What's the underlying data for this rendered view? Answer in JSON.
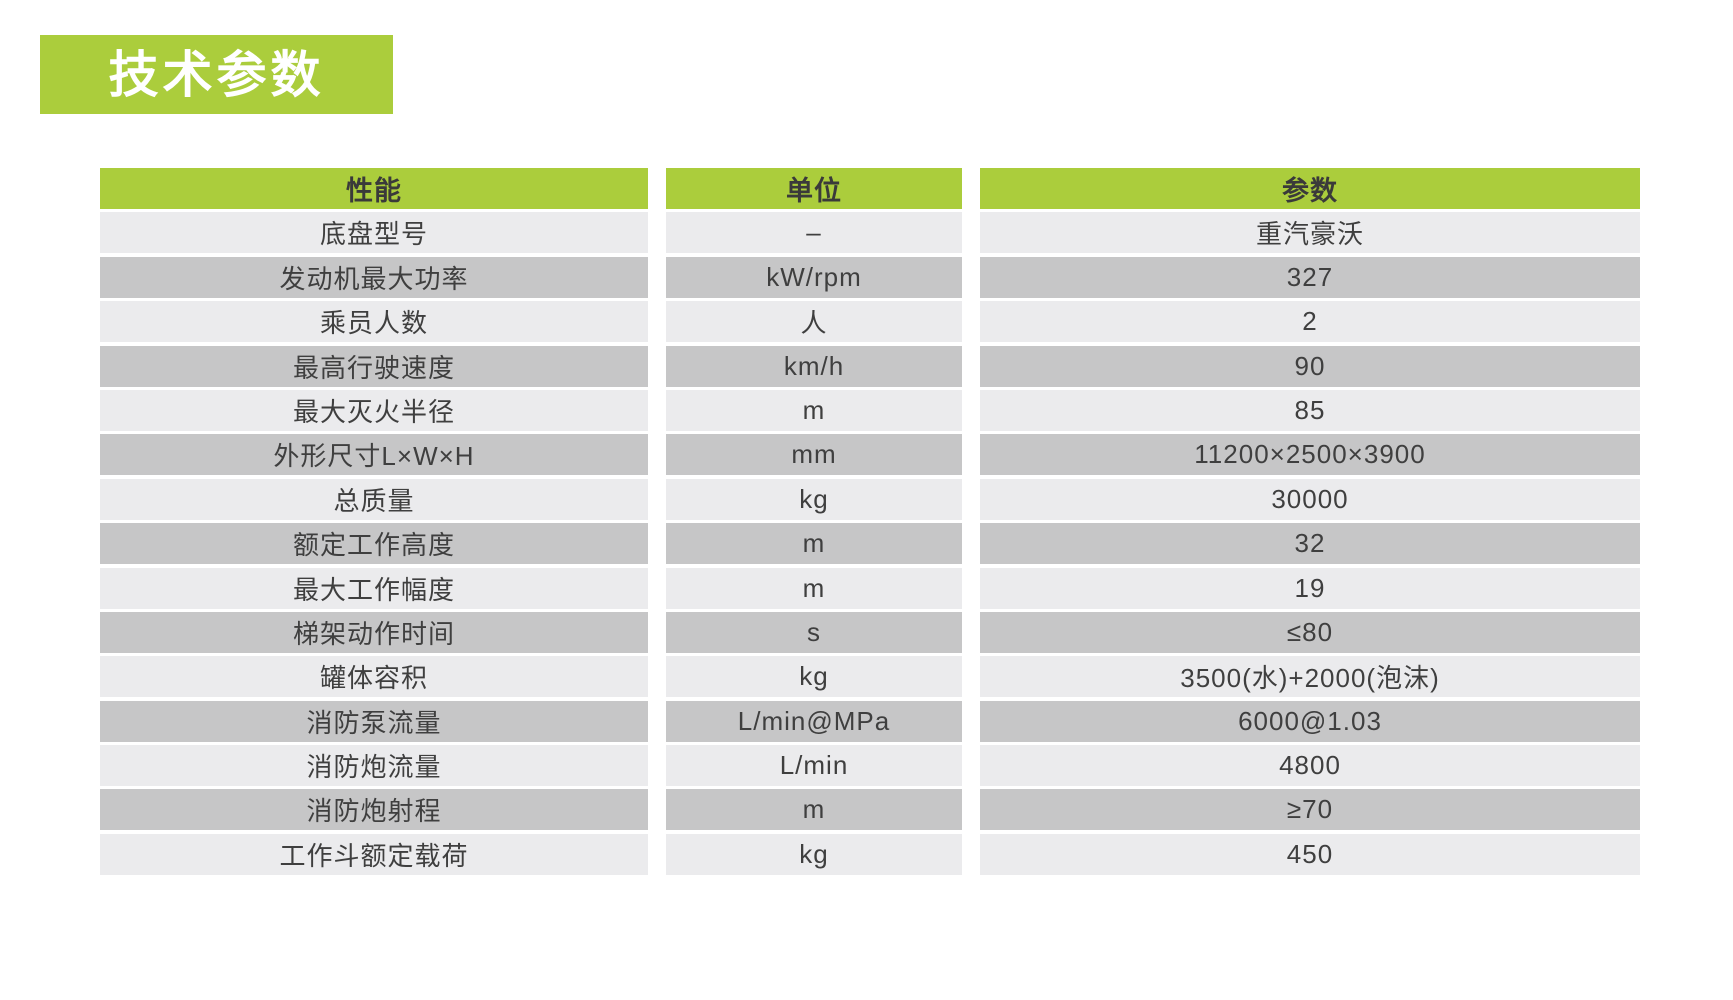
{
  "section": {
    "title": "技术参数"
  },
  "colors": {
    "accent_green": "#abcd3c",
    "row_light": "#ebebed",
    "row_dark": "#c6c6c7",
    "header_text": "#3a3a3a",
    "cell_text": "#3f3f3f",
    "title_text": "#ffffff"
  },
  "table": {
    "headers": [
      "性能",
      "单位",
      "参数"
    ],
    "rows": [
      {
        "name": "底盘型号",
        "unit": "–",
        "value": "重汽豪沃"
      },
      {
        "name": "发动机最大功率",
        "unit": "kW/rpm",
        "value": "327"
      },
      {
        "name": "乘员人数",
        "unit": "人",
        "value": "2"
      },
      {
        "name": "最高行驶速度",
        "unit": "km/h",
        "value": "90"
      },
      {
        "name": "最大灭火半径",
        "unit": "m",
        "value": "85"
      },
      {
        "name": "外形尺寸L×W×H",
        "unit": "mm",
        "value": "11200×2500×3900"
      },
      {
        "name": "总质量",
        "unit": "kg",
        "value": "30000"
      },
      {
        "name": "额定工作高度",
        "unit": "m",
        "value": "32"
      },
      {
        "name": "最大工作幅度",
        "unit": "m",
        "value": "19"
      },
      {
        "name": "梯架动作时间",
        "unit": "s",
        "value": "≤80"
      },
      {
        "name": "罐体容积",
        "unit": "kg",
        "value": "3500(水)+2000(泡沫)"
      },
      {
        "name": "消防泵流量",
        "unit": "L/min@MPa",
        "value": "6000@1.03"
      },
      {
        "name": "消防炮流量",
        "unit": "L/min",
        "value": "4800"
      },
      {
        "name": "消防炮射程",
        "unit": "m",
        "value": "≥70"
      },
      {
        "name": "工作斗额定载荷",
        "unit": "kg",
        "value": "450"
      }
    ]
  }
}
